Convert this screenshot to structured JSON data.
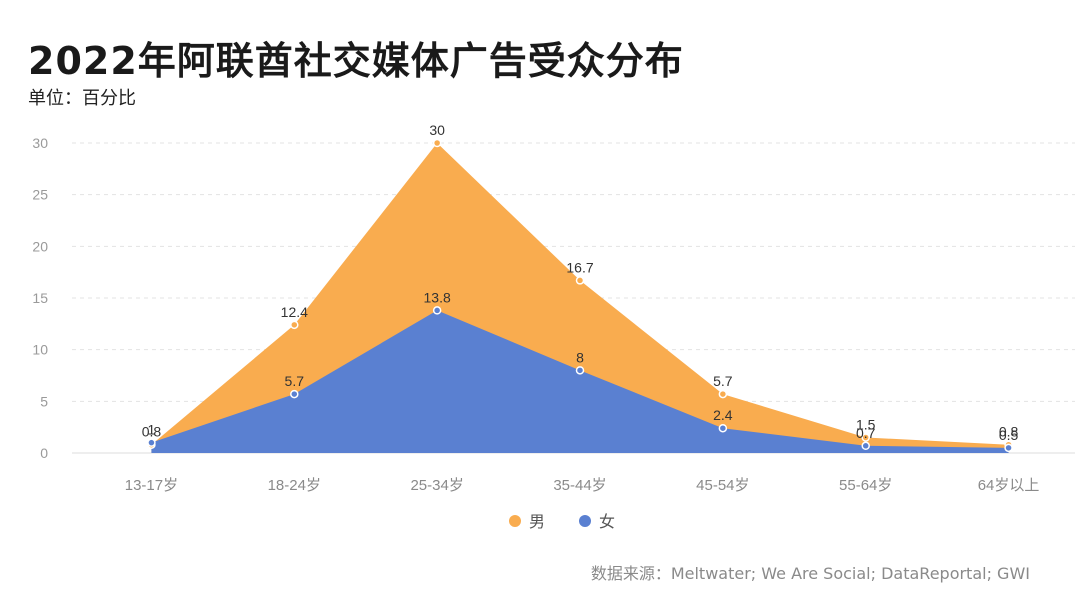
{
  "title": "2022年阿联酋社交媒体广告受众分布",
  "subtitle": "单位：百分比",
  "source": "数据来源：Meltwater; We Are Social; DataReportal; GWI",
  "colors": {
    "male": "#F9AC4F",
    "female": "#5A80D1",
    "grid": "#e3e3e3",
    "axis_text": "#9a9a9a"
  },
  "chart_data": {
    "type": "area",
    "categories": [
      "13-17岁",
      "18-24岁",
      "25-34岁",
      "35-44岁",
      "45-54岁",
      "55-64岁",
      "64岁以上"
    ],
    "ylim": [
      0,
      30
    ],
    "yticks": [
      0,
      5,
      10,
      15,
      20,
      25,
      30
    ],
    "grid": true,
    "legend_position": "bottom",
    "series": [
      {
        "name": "男",
        "values": [
          0.8,
          12.4,
          30,
          16.7,
          5.7,
          1.5,
          0.8
        ]
      },
      {
        "name": "女",
        "values": [
          1,
          5.7,
          13.8,
          8,
          2.4,
          0.7,
          0.5
        ]
      }
    ]
  }
}
